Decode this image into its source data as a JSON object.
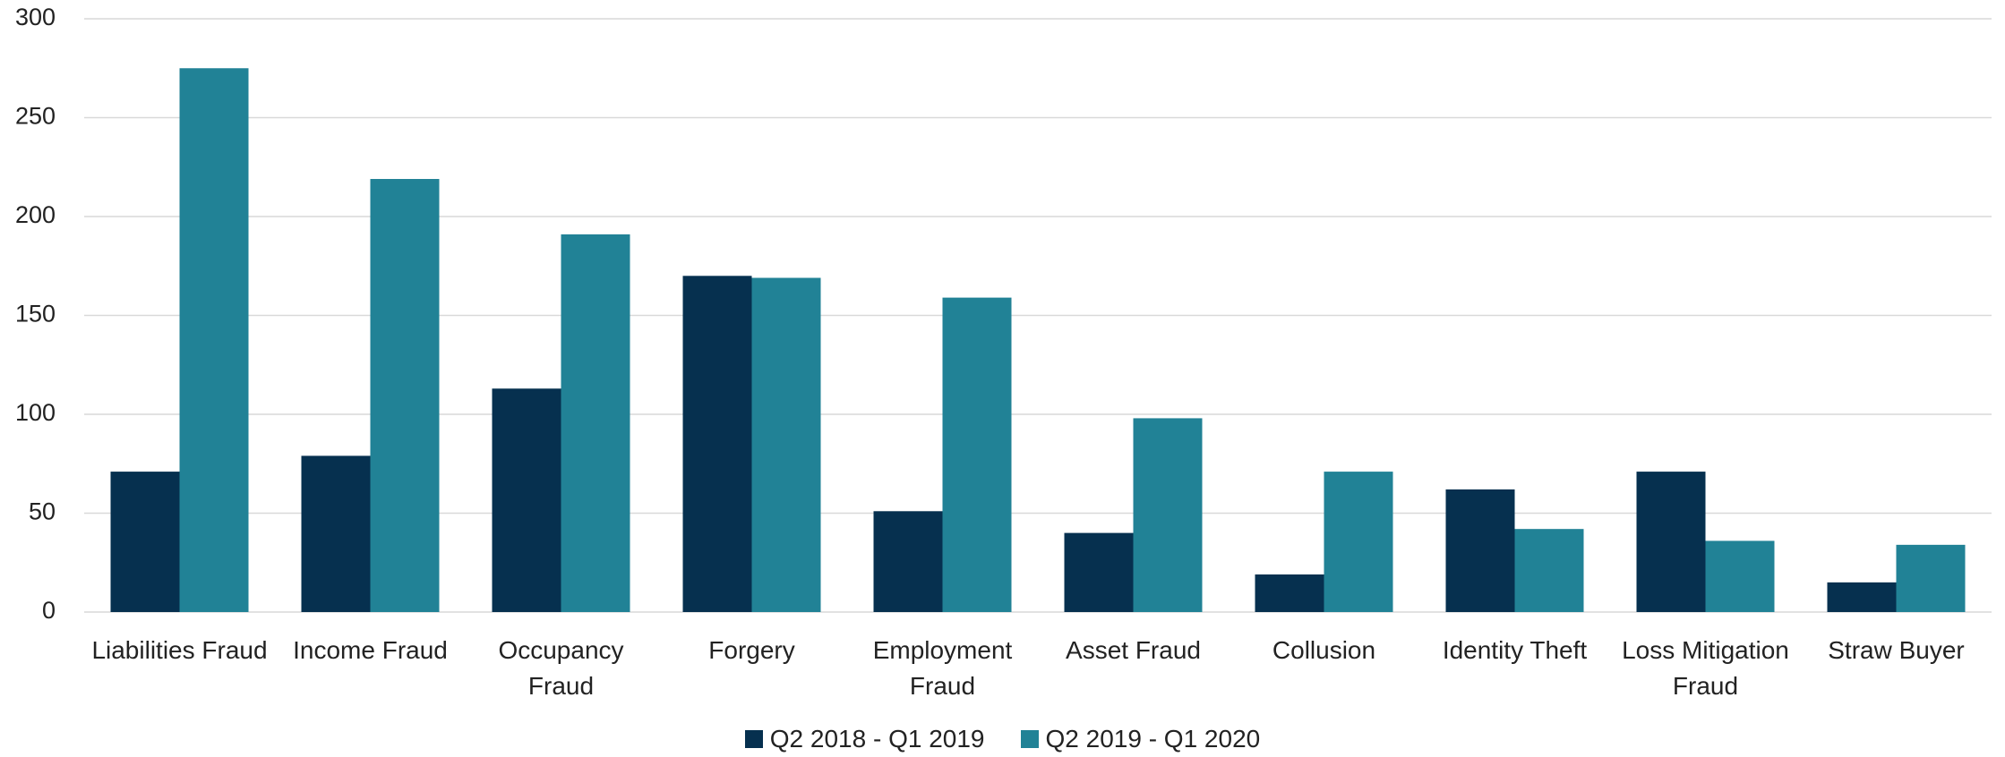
{
  "chart_data": {
    "type": "bar",
    "categories": [
      "Liabilities Fraud",
      "Income Fraud",
      "Occupancy Fraud",
      "Forgery",
      "Employment Fraud",
      "Asset Fraud",
      "Collusion",
      "Identity Theft",
      "Loss Mitigation Fraud",
      "Straw Buyer"
    ],
    "series": [
      {
        "name": "Q2 2018 - Q1 2019",
        "color": "#06304f",
        "values": [
          71,
          79,
          113,
          170,
          51,
          40,
          19,
          62,
          71,
          15
        ]
      },
      {
        "name": "Q2 2019 - Q1 2020",
        "color": "#218296",
        "values": [
          275,
          219,
          191,
          169,
          159,
          98,
          71,
          42,
          36,
          34
        ]
      }
    ],
    "ylim": [
      0,
      300
    ],
    "yticks": [
      0,
      50,
      100,
      150,
      200,
      250,
      300
    ],
    "grid": true,
    "legend": "bottom"
  }
}
